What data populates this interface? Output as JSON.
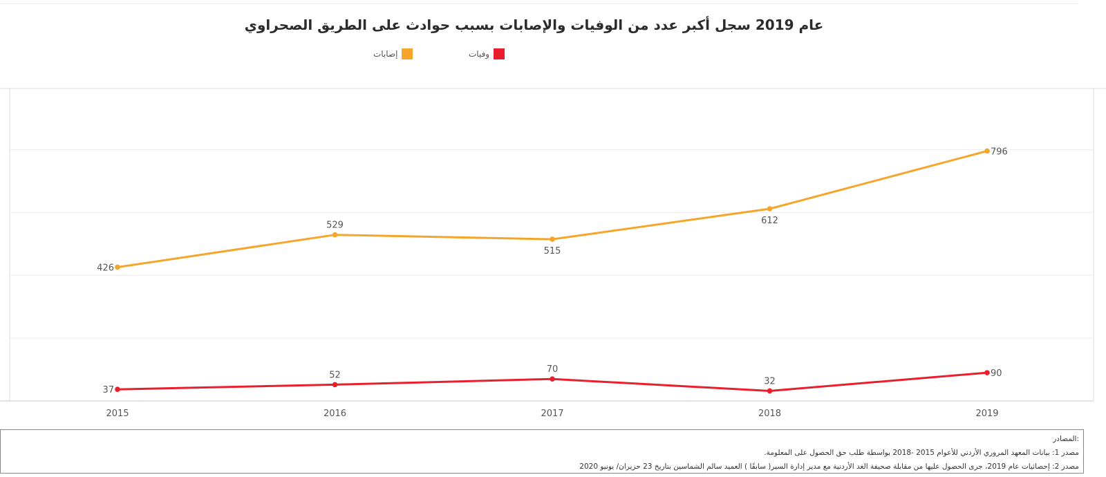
{
  "chart_data": {
    "type": "line",
    "title": "عام 2019 سجل أكبر عدد من الوفيات والإصابات بسبب حوادث على الطريق الصحراوي",
    "x": [
      "2015",
      "2016",
      "2017",
      "2018",
      "2019"
    ],
    "series": [
      {
        "name": "إصابات",
        "color": "#f5a52a",
        "values": [
          426,
          529,
          515,
          612,
          796
        ]
      },
      {
        "name": "وفيات",
        "color": "#e8202e",
        "values": [
          37,
          52,
          70,
          32,
          90
        ]
      }
    ],
    "ylim": [
      0,
      1000
    ],
    "grid": true,
    "legend_position": "top-center"
  },
  "sources": {
    "heading": ":المصادر",
    "lines": [
      "مصدر 1: بيانات المعهد المروري الأردني للأعوام 2015 -2018 بواسطة طلب حق الحصول على المعلومة.",
      "مصدر 2: إحصائيات عام 2019، جرى الحصول عليها من مقابلة صحيفة الغد الأردنية مع مدير إدارة السير( سابقًا ) العميد سالم الشماسين بتاريخ 23 حزيران/ يونيو 2020"
    ]
  }
}
